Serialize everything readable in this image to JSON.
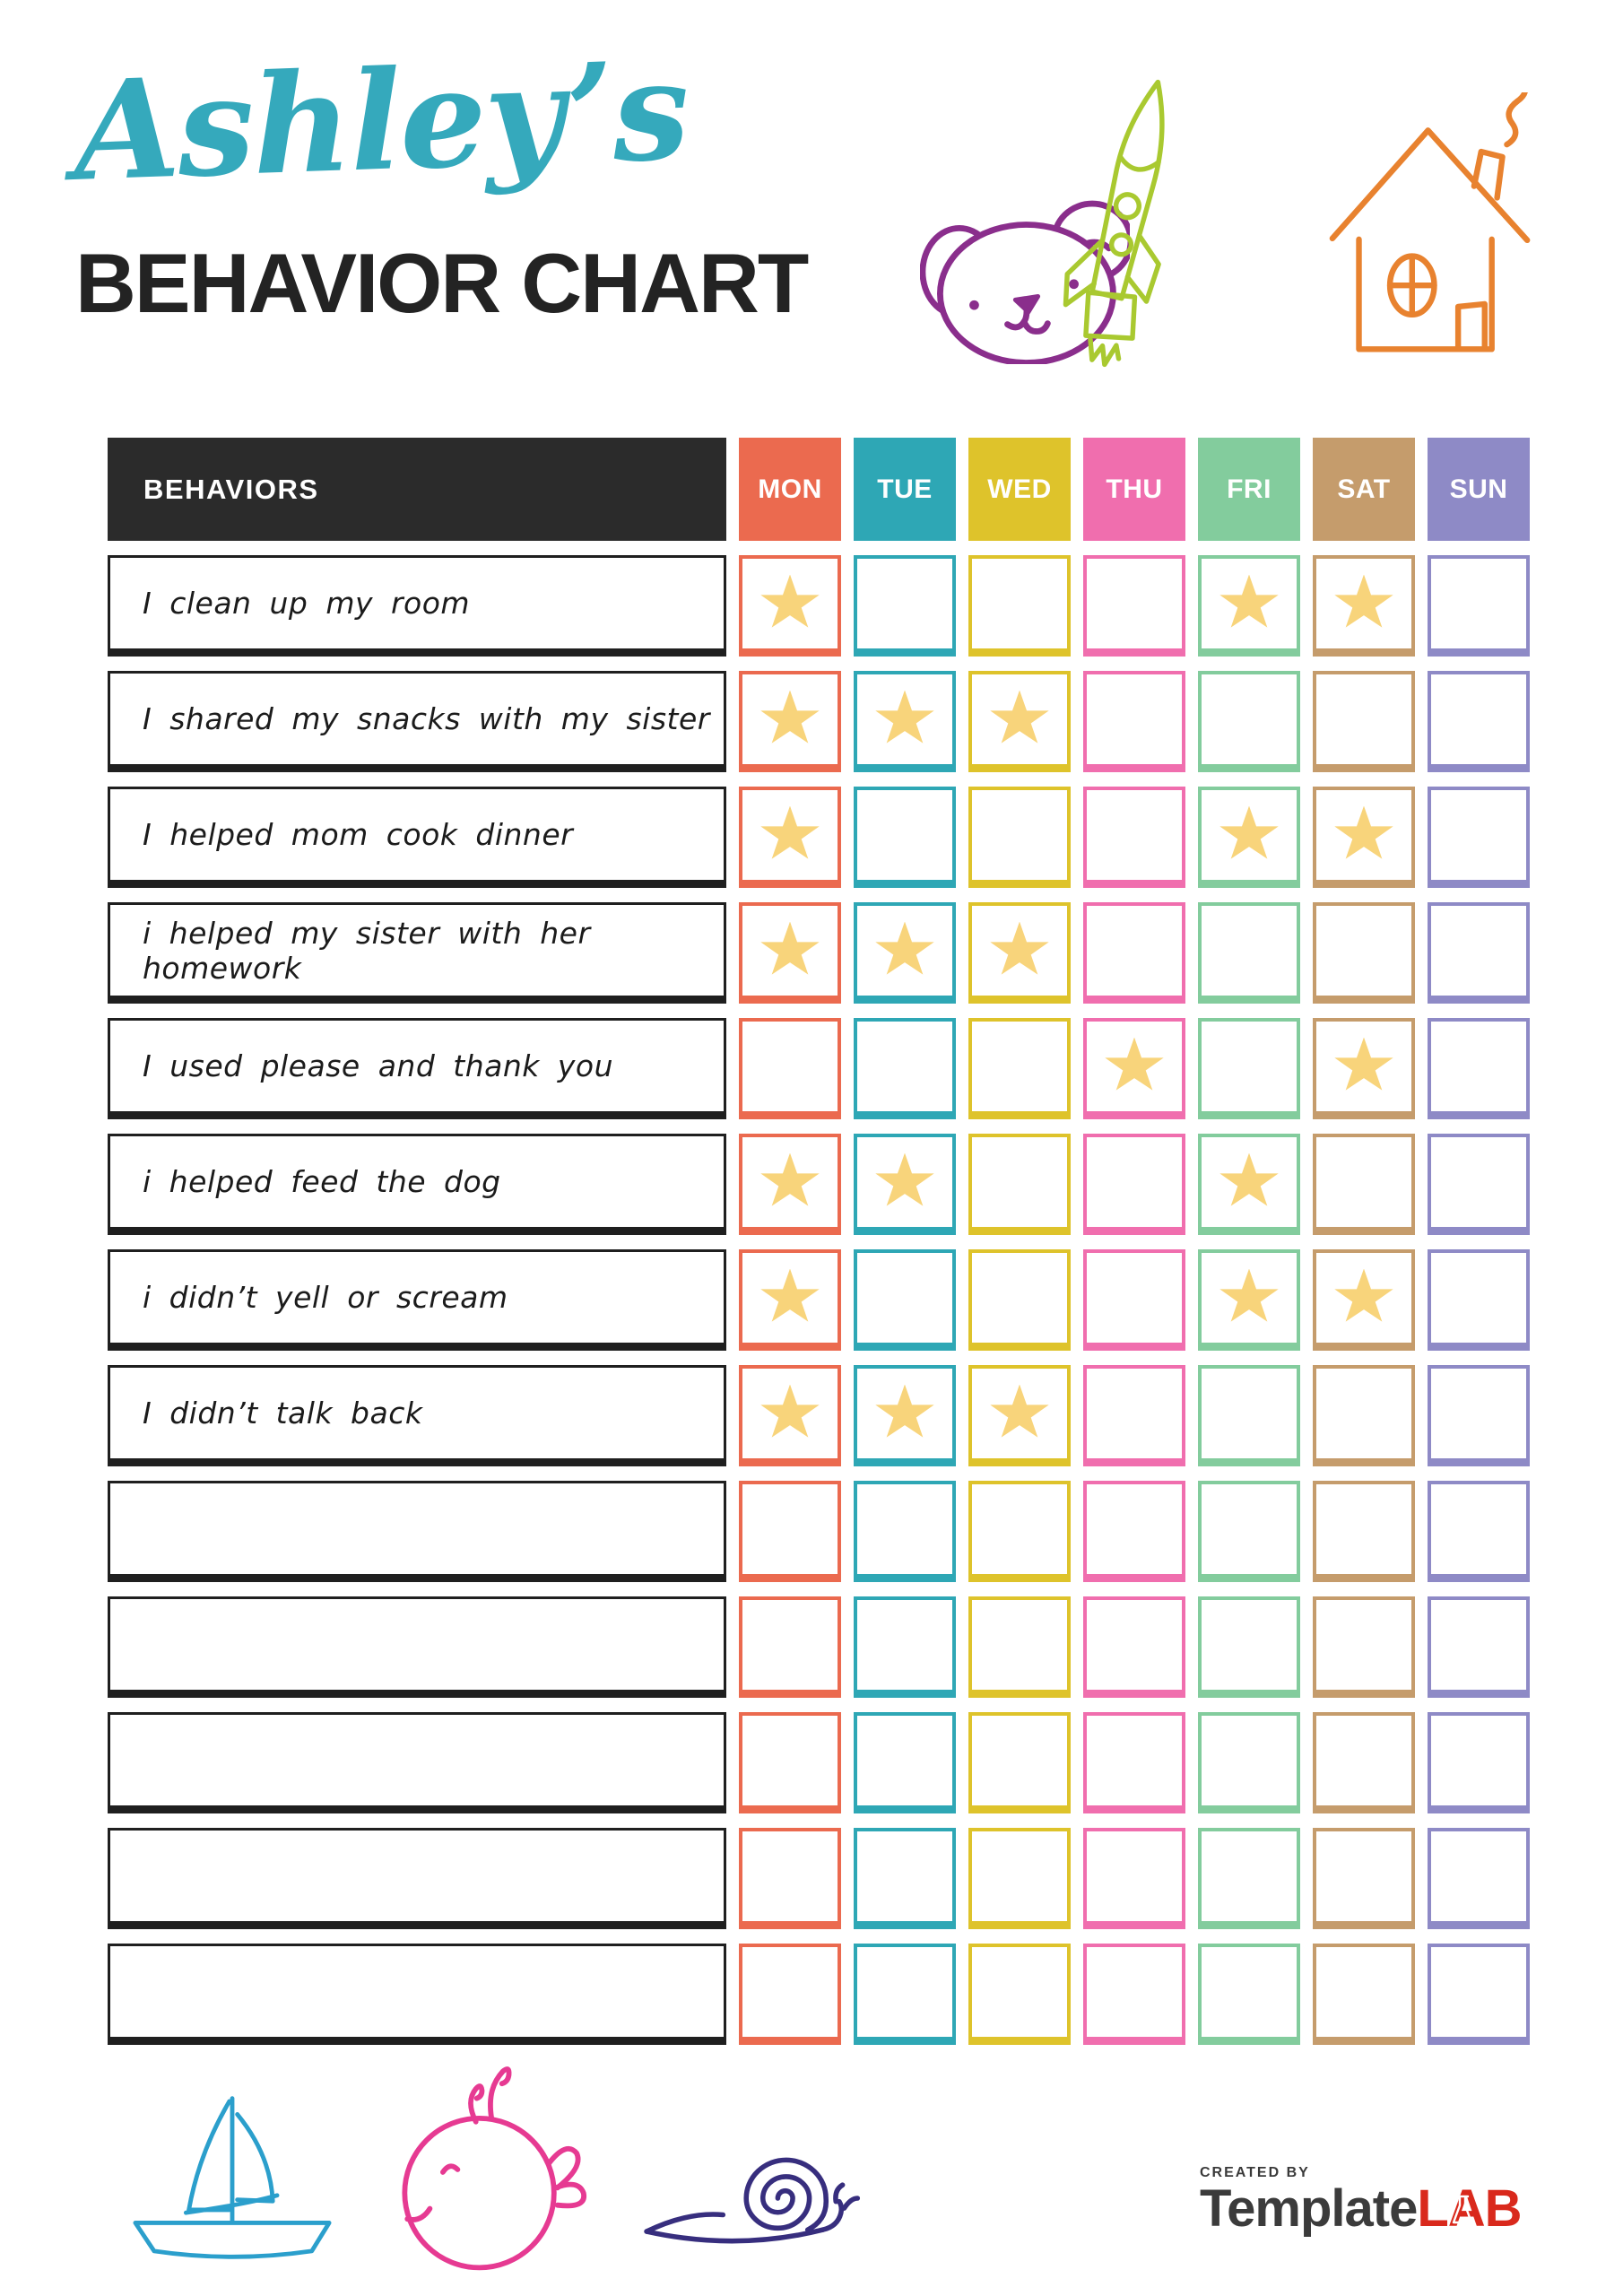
{
  "header": {
    "script_name": "Ashley’s",
    "title": "BEHAVIOR CHART"
  },
  "chart": {
    "behaviors_header": "BEHAVIORS",
    "header_bg": "#2B2B2B",
    "day_headers": [
      "MON",
      "TUE",
      "WED",
      "THU",
      "FRI",
      "SAT",
      "SUN"
    ],
    "day_colors": [
      "#EB6A4F",
      "#2EA7B5",
      "#DEC32B",
      "#F06EAE",
      "#83CC9D",
      "#C59C6C",
      "#8E8AC6"
    ],
    "star_color": "#F8D47B",
    "rows": [
      {
        "behavior": "I clean up my room",
        "stars": [
          1,
          0,
          0,
          0,
          1,
          1,
          0
        ]
      },
      {
        "behavior": "I shared my snacks with my sister",
        "stars": [
          1,
          1,
          1,
          0,
          0,
          0,
          0
        ]
      },
      {
        "behavior": "I helped mom cook dinner",
        "stars": [
          1,
          0,
          0,
          0,
          1,
          1,
          0
        ]
      },
      {
        "behavior": "i helped my sister with her homework",
        "stars": [
          1,
          1,
          1,
          0,
          0,
          0,
          0
        ]
      },
      {
        "behavior": "I used please and thank you",
        "stars": [
          0,
          0,
          0,
          1,
          0,
          1,
          0
        ]
      },
      {
        "behavior": "i helped feed the dog",
        "stars": [
          1,
          1,
          0,
          0,
          1,
          0,
          0
        ]
      },
      {
        "behavior": "i didn’t yell or scream",
        "stars": [
          1,
          0,
          0,
          0,
          1,
          1,
          0
        ]
      },
      {
        "behavior": "I didn’t talk back",
        "stars": [
          1,
          1,
          1,
          0,
          0,
          0,
          0
        ]
      },
      {
        "behavior": "",
        "stars": [
          0,
          0,
          0,
          0,
          0,
          0,
          0
        ]
      },
      {
        "behavior": "",
        "stars": [
          0,
          0,
          0,
          0,
          0,
          0,
          0
        ]
      },
      {
        "behavior": "",
        "stars": [
          0,
          0,
          0,
          0,
          0,
          0,
          0
        ]
      },
      {
        "behavior": "",
        "stars": [
          0,
          0,
          0,
          0,
          0,
          0,
          0
        ]
      },
      {
        "behavior": "",
        "stars": [
          0,
          0,
          0,
          0,
          0,
          0,
          0
        ]
      }
    ]
  },
  "footer": {
    "created_by": "CREATED BY",
    "brand_dark": "Template",
    "brand_red": "LAB"
  },
  "colors": {
    "title_teal": "#35A9BC",
    "title_dark": "#232323",
    "brand_red": "#D9291C"
  },
  "doodles": {
    "bear_color": "#8A2E8C",
    "rocket_color": "#A9C930",
    "house_color": "#E8822F",
    "boat_color": "#2B9FCC",
    "whale_color": "#E63A92",
    "snail_color": "#372E7E"
  }
}
